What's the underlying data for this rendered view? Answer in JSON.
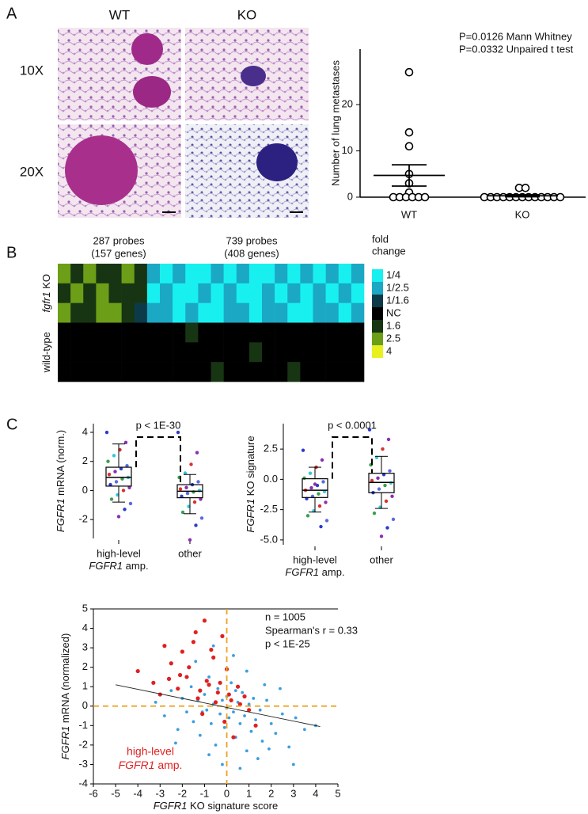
{
  "figure": {
    "panel_labels": [
      "A",
      "B",
      "C"
    ],
    "image_columns": [
      "WT",
      "KO"
    ],
    "image_rows": [
      "10X",
      "20X"
    ]
  },
  "chart_data": [
    {
      "type": "strip",
      "ylabel": "Number of lung metastases",
      "categories": [
        "WT",
        "KO"
      ],
      "values": [
        [
          27,
          14,
          11,
          5,
          3,
          1,
          0,
          0,
          0,
          0,
          0,
          0
        ],
        [
          2,
          2,
          0,
          0,
          0,
          0,
          0,
          0,
          0,
          0,
          0,
          0,
          0,
          0,
          0
        ]
      ],
      "means": [
        4.7,
        0.3
      ],
      "sems": [
        2.3,
        0.2
      ],
      "ylim": [
        0,
        32
      ],
      "yticks": [
        0,
        10,
        20
      ],
      "annotations": [
        "P=0.0126 Mann Whitney",
        "P=0.0332 Unpaired t test"
      ]
    },
    {
      "type": "heatmap",
      "sections": [
        [
          "287 probes",
          "(157 genes)"
        ],
        [
          "739 probes",
          "(408 genes)"
        ]
      ],
      "groups": [
        {
          "label_parts": [
            "fgfr1",
            " KO"
          ],
          "values": [
            [
              2.5,
              1.6,
              2.5,
              1.6,
              1.6,
              2.5,
              1.6,
              0.4,
              0.25,
              0.4,
              0.25,
              0.25,
              0.4,
              0.25,
              0.4,
              0.25,
              0.25,
              0.4,
              0.25,
              0.4,
              0.25,
              0.4,
              0.25,
              0.4
            ],
            [
              1.6,
              2.5,
              1.6,
              2.5,
              1.6,
              1.6,
              1.6,
              0.25,
              0.4,
              0.25,
              0.25,
              0.4,
              0.25,
              0.4,
              0.25,
              0.25,
              0.4,
              0.25,
              0.4,
              0.25,
              0.4,
              0.25,
              0.4,
              0.25
            ],
            [
              2.5,
              1.6,
              1.6,
              2.5,
              2.5,
              1.6,
              0.625,
              0.4,
              0.4,
              0.25,
              0.4,
              0.25,
              0.25,
              0.4,
              0.4,
              0.25,
              0.4,
              0.4,
              0.25,
              0.25,
              0.4,
              0.4,
              0.25,
              0.4
            ]
          ]
        },
        {
          "label_parts": [
            "wild-type"
          ],
          "values": [
            [
              1,
              1,
              1,
              1,
              1,
              1,
              1,
              1,
              1,
              1,
              1.6,
              1,
              1,
              1,
              1,
              1,
              1,
              1,
              1,
              1,
              1,
              1,
              1,
              1
            ],
            [
              1,
              1,
              1,
              1,
              1,
              1,
              1,
              1,
              1,
              1,
              1,
              1,
              1,
              1,
              1,
              1.6,
              1,
              1,
              1,
              1,
              1,
              1,
              1,
              1
            ],
            [
              1,
              1,
              1,
              1,
              1,
              1,
              1,
              1,
              1,
              1,
              1,
              1,
              1.6,
              1,
              1,
              1,
              1,
              1,
              1.6,
              1,
              1,
              1,
              1,
              1
            ]
          ]
        }
      ],
      "legend_title": [
        "fold",
        "change"
      ],
      "levels": [
        {
          "value": 0.25,
          "label": "1/4"
        },
        {
          "value": 0.4,
          "label": "1/2.5"
        },
        {
          "value": 0.625,
          "label": "1/1.6"
        },
        {
          "value": 1,
          "label": "NC"
        },
        1.6,
        2.5,
        4
      ],
      "level_colors": [
        "#18f0f0",
        "#1aa8c4",
        "#0c3a48",
        "#000000",
        "#173512",
        "#6c9e18",
        "#e8f020"
      ]
    },
    {
      "type": "box",
      "ylabel_parts": [
        "FGFR1",
        " mRNA (norm.)"
      ],
      "categories": [
        "high-level",
        "other"
      ],
      "category_note": [
        "FGFR1",
        " amp."
      ],
      "ylim": [
        -3.3,
        4.6
      ],
      "yticks": [
        -2,
        0,
        2,
        4
      ],
      "boxes": [
        {
          "whislo": -0.8,
          "q1": 0.3,
          "median": 0.9,
          "q3": 1.6,
          "whishi": 3.2
        },
        {
          "whislo": -1.6,
          "q1": -0.5,
          "median": -0.05,
          "q3": 0.4,
          "whishi": 1.1
        }
      ],
      "points": [
        [
          4.0,
          3.3,
          2.8,
          2.4,
          2.0,
          1.7,
          1.5,
          1.3,
          1.1,
          0.9,
          0.8,
          0.6,
          0.4,
          0.2,
          0.0,
          -0.3,
          -0.6,
          -0.9,
          -1.3,
          -1.8
        ],
        [
          4.0,
          2.6,
          1.8,
          1.2,
          0.9,
          0.6,
          0.4,
          0.2,
          0.1,
          0.0,
          -0.1,
          -0.2,
          -0.4,
          -0.6,
          -0.8,
          -1.1,
          -1.5,
          -1.9,
          -2.4,
          -3.4
        ]
      ],
      "point_colors": [
        "#2a3ccc",
        "#8a2fb0",
        "#d83030",
        "#30c8d8",
        "#38a050",
        "#5a6ae0"
      ],
      "annotation": "p < 1E-30"
    },
    {
      "type": "box",
      "ylabel_parts": [
        "FGFR1",
        " KO signature"
      ],
      "categories": [
        "high-level",
        "other"
      ],
      "category_note": [
        "FGFR1",
        " amp."
      ],
      "ylim": [
        -5.4,
        4.6
      ],
      "yticks": [
        {
          "value": -5,
          "label": "-5.0"
        },
        -2.5,
        {
          "value": 0,
          "label": "0.0"
        },
        2.5
      ],
      "boxes": [
        {
          "whislo": -2.7,
          "q1": -1.5,
          "median": -0.9,
          "q3": 0.05,
          "whishi": 1.0
        },
        {
          "whislo": -2.4,
          "q1": -1.1,
          "median": -0.25,
          "q3": 0.5,
          "whishi": 1.9
        }
      ],
      "points": [
        [
          2.4,
          1.6,
          1.0,
          0.5,
          0.1,
          -0.2,
          -0.5,
          -0.7,
          -0.9,
          -1.0,
          -1.2,
          -1.4,
          -1.6,
          -1.9,
          -2.2,
          -2.6,
          -3.0,
          -3.4,
          -3.9,
          -0.4
        ],
        [
          4.1,
          3.3,
          2.5,
          1.8,
          1.2,
          0.7,
          0.4,
          0.1,
          -0.1,
          -0.3,
          -0.5,
          -0.8,
          -1.1,
          -1.4,
          -1.8,
          -2.3,
          -2.8,
          -3.3,
          -4.0,
          -4.7
        ]
      ],
      "point_colors": [
        "#2a3ccc",
        "#8a2fb0",
        "#d83030",
        "#30c8d8",
        "#38a050",
        "#5a6ae0"
      ],
      "annotation": "p < 0.0001"
    },
    {
      "type": "scatter",
      "xlabel_parts": [
        "FGFR1",
        " KO signature score"
      ],
      "ylabel_parts": [
        "FGFR1",
        " mRNA (normalized)"
      ],
      "xlim": [
        -6,
        5
      ],
      "xticks": [
        -6,
        -5,
        -4,
        -3,
        -2,
        -1,
        0,
        1,
        2,
        3,
        4,
        5
      ],
      "ylim": [
        -4,
        5
      ],
      "yticks": [
        -4,
        -3,
        -2,
        -1,
        0,
        1,
        2,
        3,
        4,
        5
      ],
      "series": [
        {
          "color": "#3a9ee0",
          "x": [
            -3.2,
            -2.8,
            -2.5,
            -2.2,
            -2.0,
            -1.8,
            -1.6,
            -1.5,
            -1.3,
            -1.2,
            -1.0,
            -0.9,
            -0.8,
            -0.7,
            -0.6,
            -0.5,
            -0.4,
            -0.3,
            -0.2,
            -0.1,
            0.0,
            0.1,
            0.2,
            0.3,
            0.4,
            0.5,
            0.6,
            0.7,
            0.8,
            0.9,
            1.0,
            1.1,
            1.2,
            1.3,
            1.5,
            1.6,
            1.8,
            2.0,
            2.2,
            2.5,
            2.8,
            3.1,
            3.5,
            4.0,
            -1.4,
            -0.6,
            0.3,
            0.9,
            1.4,
            -2.3,
            -0.2,
            0.6,
            1.9,
            2.4,
            -1.1,
            0.0,
            0.4,
            -0.8,
            1.7,
            3.0
          ],
          "y": [
            0.2,
            -0.5,
            0.8,
            -1.2,
            0.4,
            -0.3,
            1.0,
            -0.8,
            0.3,
            -1.5,
            0.6,
            -0.2,
            1.5,
            -0.9,
            0.1,
            -2.0,
            0.9,
            -0.4,
            0.3,
            -1.1,
            0.5,
            -0.6,
            1.2,
            -0.3,
            -1.6,
            0.2,
            -0.9,
            0.7,
            -0.5,
            -2.3,
            0.1,
            -1.3,
            0.4,
            -0.7,
            -0.2,
            -1.8,
            0.3,
            -0.9,
            -1.4,
            -0.4,
            -2.1,
            -0.6,
            -1.2,
            -1.0,
            2.3,
            3.1,
            2.6,
            1.8,
            -2.7,
            -1.9,
            -3.0,
            -3.2,
            -2.2,
            0.9,
            -0.3,
            -0.1,
            0.8,
            -2.5,
            1.1,
            -3.0
          ]
        },
        {
          "name_parts": [
            "high-level",
            "FGFR1",
            " amp."
          ],
          "color": "#e02020",
          "x": [
            -4.0,
            -3.3,
            -3.0,
            -2.8,
            -2.5,
            -2.2,
            -2.0,
            -1.8,
            -1.5,
            -1.3,
            -1.0,
            -0.8,
            -0.6,
            -0.4,
            -0.2,
            0.0,
            0.2,
            0.5,
            0.8,
            1.0,
            -2.6,
            -1.7,
            -1.2,
            -0.9,
            -0.5,
            -0.1,
            0.3,
            -1.4,
            -0.7,
            0.6,
            -2.1,
            -1.1,
            0.1,
            -0.3,
            1.3
          ],
          "y": [
            1.8,
            1.2,
            0.6,
            3.1,
            2.2,
            0.9,
            2.8,
            1.5,
            3.3,
            0.4,
            4.4,
            1.1,
            2.5,
            0.7,
            3.6,
            1.9,
            0.3,
            1.0,
            0.5,
            -0.2,
            1.4,
            2.0,
            0.8,
            1.3,
            0.2,
            -0.8,
            -1.6,
            3.8,
            2.9,
            0.1,
            1.6,
            -0.4,
            0.6,
            1.2,
            -1.0
          ]
        }
      ],
      "fit": {
        "x": [
          -5,
          4.2
        ],
        "y": [
          1.1,
          -1.05
        ]
      },
      "reference": {
        "x": 0,
        "y": 0,
        "color": "#f0a020"
      },
      "annotations": [
        "n = 1005",
        "Spearman's r = 0.33",
        "p < 1E-25"
      ]
    }
  ]
}
